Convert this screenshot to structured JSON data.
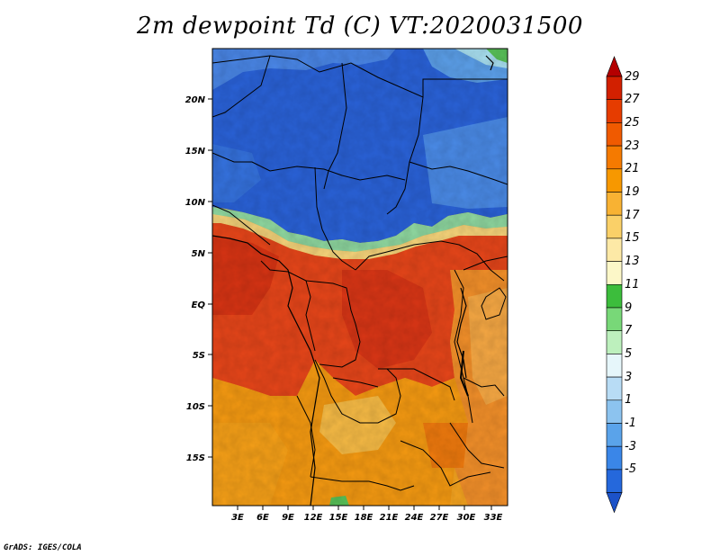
{
  "title": "2m dewpoint Td (C) VT:2020031500",
  "credit": "GrADS: IGES/COLA",
  "map": {
    "lat_labels": [
      "20N",
      "15N",
      "10N",
      "5N",
      "EQ",
      "5S",
      "10S",
      "15S"
    ],
    "lon_labels": [
      "3E",
      "6E",
      "9E",
      "12E",
      "15E",
      "18E",
      "21E",
      "24E",
      "27E",
      "30E",
      "33E"
    ]
  },
  "colorbar": {
    "labels": [
      "29",
      "27",
      "25",
      "23",
      "21",
      "19",
      "17",
      "15",
      "13",
      "11",
      "9",
      "7",
      "5",
      "3",
      "1",
      "-1",
      "-3",
      "-5"
    ],
    "colors": [
      "#b40000",
      "#d22000",
      "#e63c00",
      "#f05a00",
      "#f57a00",
      "#f79800",
      "#f8b233",
      "#fad068",
      "#fde9a6",
      "#fcf7c8",
      "#3cbd3c",
      "#78d878",
      "#bdf0bd",
      "#e6f6fa",
      "#b8dcf5",
      "#8cc3ef",
      "#5aa3ea",
      "#3a86e8",
      "#2568dc",
      "#1c52c8"
    ]
  },
  "colors": {
    "sahel_blue": "#2a62d8",
    "warm_red": "#e04a10",
    "orange": "#f59a12"
  }
}
